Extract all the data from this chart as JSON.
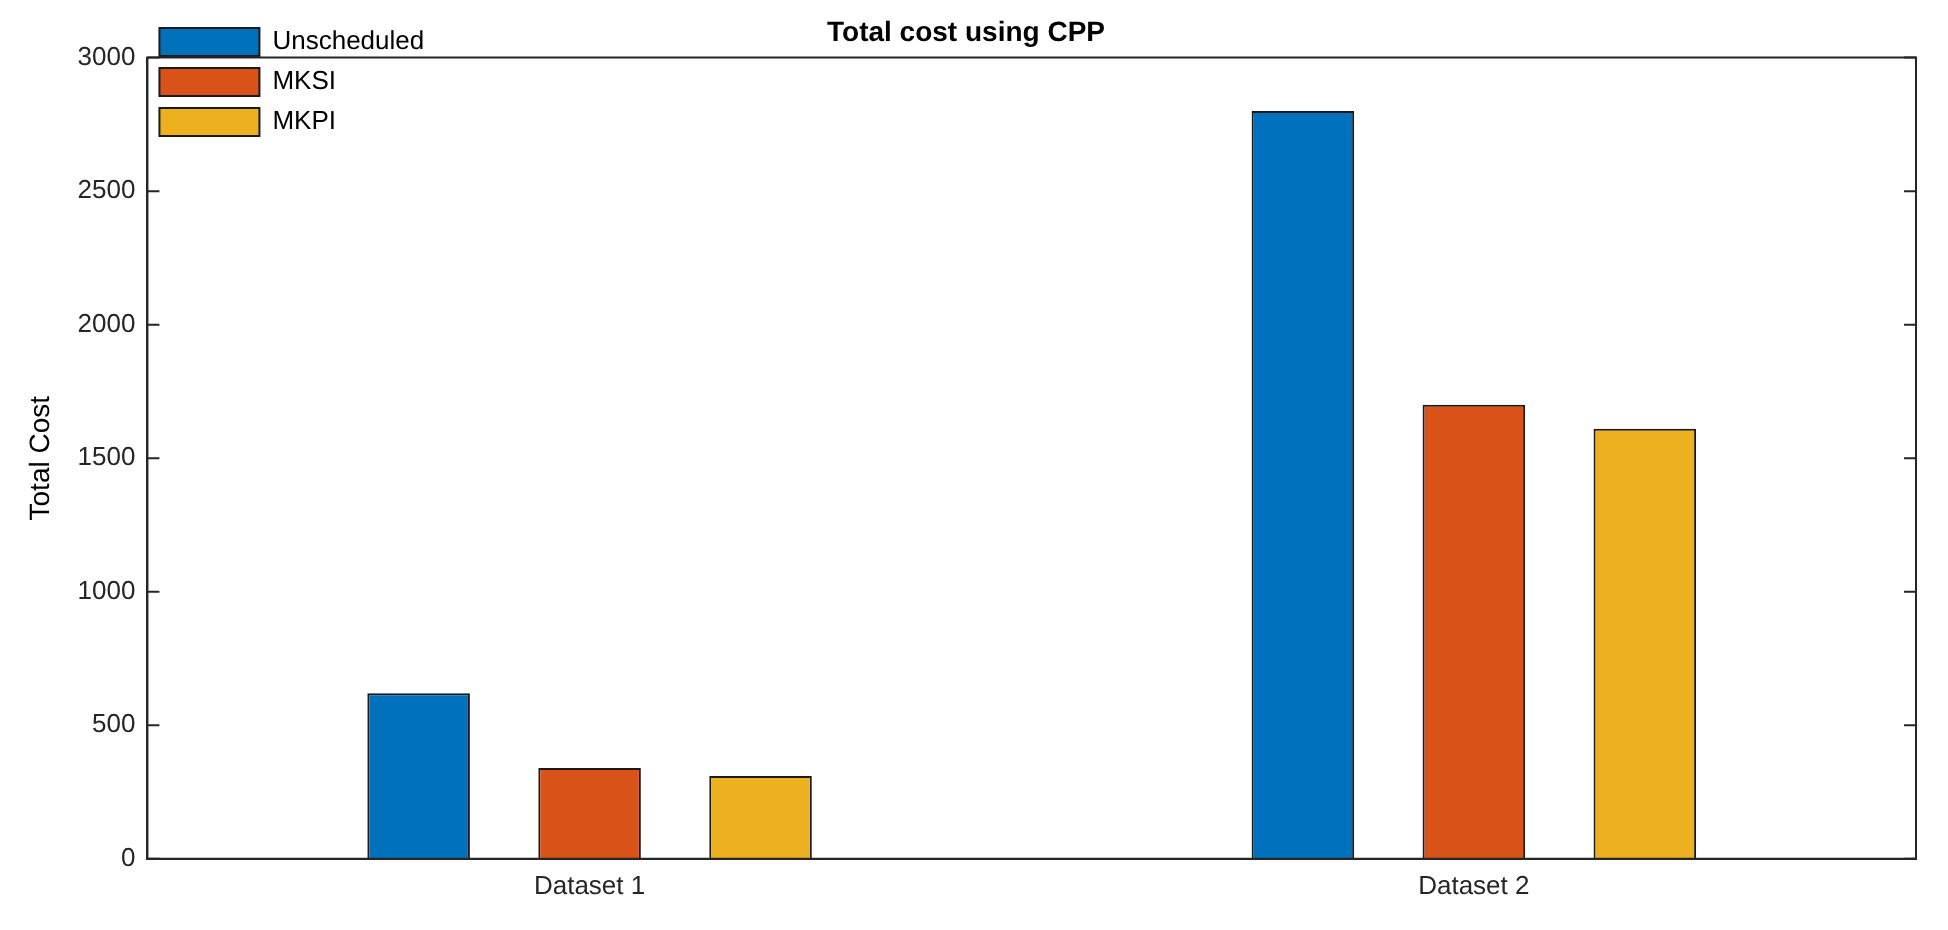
{
  "chart_data": {
    "type": "bar",
    "title": "Total cost using CPP",
    "ylabel": "Total Cost",
    "categories": [
      "Dataset 1",
      "Dataset 2"
    ],
    "series": [
      {
        "name": "Unscheduled",
        "color": "#0072bd",
        "values": [
          620,
          2800
        ]
      },
      {
        "name": "MKSI",
        "color": "#d95319",
        "values": [
          340,
          1700
        ]
      },
      {
        "name": "MKPI",
        "color": "#edb120",
        "values": [
          310,
          1610
        ]
      }
    ],
    "ylim": [
      0,
      3000
    ],
    "yticks": [
      0,
      500,
      1000,
      1500,
      2000,
      2500,
      3000
    ],
    "grid": false,
    "legend": "top left"
  }
}
